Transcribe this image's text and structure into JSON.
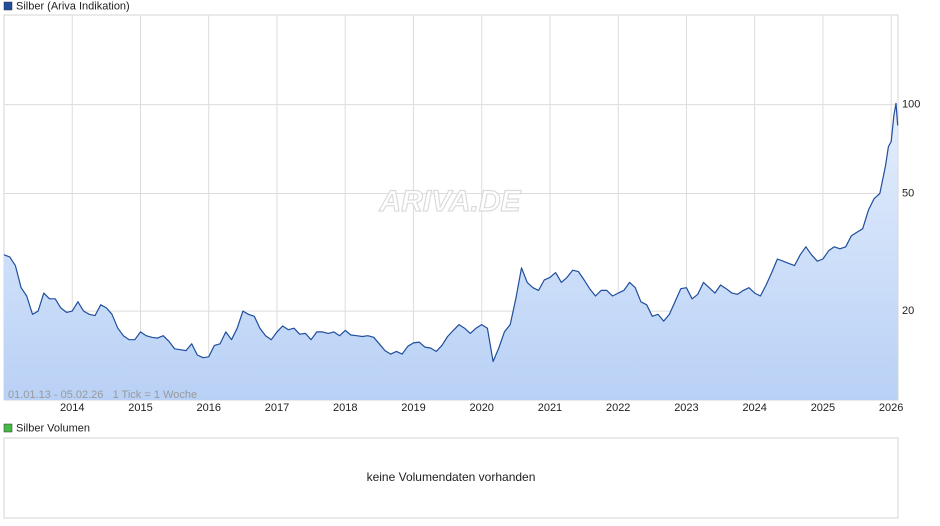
{
  "chart_data": {
    "type": "line",
    "series": [
      {
        "name": "Silber (Ariva Indikation)",
        "color": "#1f4e9c",
        "x": [
          2013,
          2013.083,
          2013.167,
          2013.25,
          2013.333,
          2013.417,
          2013.5,
          2013.583,
          2013.667,
          2013.75,
          2013.833,
          2013.917,
          2014,
          2014.083,
          2014.167,
          2014.25,
          2014.333,
          2014.417,
          2014.5,
          2014.583,
          2014.667,
          2014.75,
          2014.833,
          2014.917,
          2015,
          2015.083,
          2015.167,
          2015.25,
          2015.333,
          2015.417,
          2015.5,
          2015.583,
          2015.667,
          2015.75,
          2015.833,
          2015.917,
          2016,
          2016.083,
          2016.167,
          2016.25,
          2016.333,
          2016.417,
          2016.5,
          2016.583,
          2016.667,
          2016.75,
          2016.833,
          2016.917,
          2017,
          2017.083,
          2017.167,
          2017.25,
          2017.333,
          2017.417,
          2017.5,
          2017.583,
          2017.667,
          2017.75,
          2017.833,
          2017.917,
          2018,
          2018.083,
          2018.167,
          2018.25,
          2018.333,
          2018.417,
          2018.5,
          2018.583,
          2018.667,
          2018.75,
          2018.833,
          2018.917,
          2019,
          2019.083,
          2019.167,
          2019.25,
          2019.333,
          2019.417,
          2019.5,
          2019.583,
          2019.667,
          2019.75,
          2019.833,
          2019.917,
          2020,
          2020.083,
          2020.167,
          2020.25,
          2020.333,
          2020.417,
          2020.5,
          2020.583,
          2020.667,
          2020.75,
          2020.833,
          2020.917,
          2021,
          2021.083,
          2021.167,
          2021.25,
          2021.333,
          2021.417,
          2021.5,
          2021.583,
          2021.667,
          2021.75,
          2021.833,
          2021.917,
          2022,
          2022.083,
          2022.167,
          2022.25,
          2022.333,
          2022.417,
          2022.5,
          2022.583,
          2022.667,
          2022.75,
          2022.833,
          2022.917,
          2023,
          2023.083,
          2023.167,
          2023.25,
          2023.333,
          2023.417,
          2023.5,
          2023.583,
          2023.667,
          2023.75,
          2023.833,
          2023.917,
          2024,
          2024.083,
          2024.167,
          2024.25,
          2024.333,
          2024.417,
          2024.5,
          2024.583,
          2024.667,
          2024.75,
          2024.833,
          2024.917,
          2025,
          2025.083,
          2025.167,
          2025.25,
          2025.333,
          2025.417,
          2025.5,
          2025.583,
          2025.667,
          2025.75,
          2025.833,
          2025.917,
          2025.96,
          2026,
          2026.04,
          2026.07,
          2026.096
        ],
        "values": [
          31,
          30.5,
          28.5,
          24,
          22.5,
          19.5,
          20,
          23,
          22,
          22,
          20.5,
          19.8,
          20,
          21.5,
          20,
          19.5,
          19.3,
          21,
          20.5,
          19.5,
          17.5,
          16.5,
          16,
          16,
          17,
          16.5,
          16.3,
          16.2,
          16.5,
          15.8,
          14.9,
          14.8,
          14.7,
          15.5,
          14.2,
          13.9,
          14,
          15.3,
          15.5,
          17,
          16,
          17.5,
          20,
          19.5,
          19.2,
          17.5,
          16.5,
          16,
          17,
          17.8,
          17.3,
          17.5,
          16.7,
          16.8,
          16,
          17,
          17,
          16.8,
          17,
          16.5,
          17.2,
          16.6,
          16.5,
          16.4,
          16.5,
          16.3,
          15.5,
          14.7,
          14.3,
          14.6,
          14.3,
          15.2,
          15.6,
          15.7,
          15.1,
          15,
          14.6,
          15.3,
          16.4,
          17.2,
          18,
          17.5,
          16.8,
          17.5,
          18,
          17.5,
          13.5,
          15,
          17,
          18,
          22,
          28,
          25,
          24,
          23.5,
          25.5,
          26,
          27,
          25,
          26,
          27.5,
          27.2,
          25.5,
          23.8,
          22.5,
          23.5,
          23.5,
          22.5,
          23,
          23.5,
          25,
          24,
          21.5,
          21,
          19.2,
          19.5,
          18.5,
          19.5,
          21.5,
          23.8,
          24,
          22,
          22.8,
          25,
          24,
          23,
          24.5,
          23.8,
          23,
          22.8,
          23.5,
          24,
          23,
          22.5,
          24.5,
          27,
          30,
          29.5,
          29,
          28.5,
          31,
          33,
          31,
          29.5,
          30,
          32,
          33,
          32.5,
          33,
          36,
          37,
          38,
          44,
          48,
          50,
          62,
          72,
          75,
          92,
          101,
          85
        ]
      }
    ],
    "xlim": [
      2013,
      2026.1
    ],
    "xticks": [
      2014,
      2015,
      2016,
      2017,
      2018,
      2019,
      2020,
      2021,
      2022,
      2023,
      2024,
      2025,
      2026
    ],
    "ylim": [
      10,
      201
    ],
    "yticks": [
      20,
      50,
      100
    ],
    "log_scale": true,
    "grid": true,
    "note": "01.01.13 - 05.02.26   1 Tick = 1 Woche",
    "watermark": "ARIVA.DE",
    "volume_panel": {
      "legend": "Silber Volumen",
      "color": "#44bb44",
      "message": "keine Volumendaten vorhanden"
    }
  }
}
